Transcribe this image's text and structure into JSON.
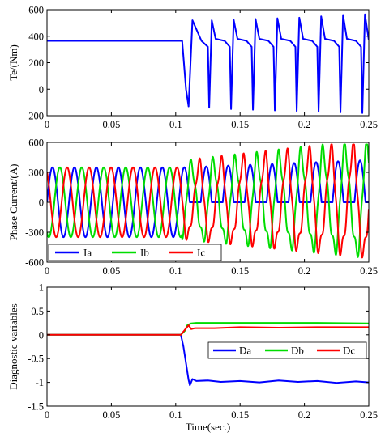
{
  "chart_data": [
    {
      "type": "line",
      "ylabel": "Te/(Nm)",
      "xlim": [
        0,
        0.25
      ],
      "ylim": [
        -200,
        600
      ],
      "xticks": [
        0,
        0.05,
        0.1,
        0.15,
        0.2,
        0.25
      ],
      "xtick_labels": [
        "0",
        "0.05",
        "0.1",
        "0.15",
        "0.2",
        "0.25"
      ],
      "yticks": [
        -200,
        0,
        200,
        400,
        600
      ],
      "ytick_labels": [
        "-200",
        "0",
        "200",
        "400",
        "600"
      ],
      "legend": "none",
      "grid": false,
      "series": [
        {
          "color": "#0000ff",
          "description": "steady 365 Nm until 0.105 s, then periodic pulsations between about -170 and 560 Nm",
          "x": [
            0,
            0.105,
            0.108,
            0.11,
            0.113,
            0.12,
            0.125,
            0.126,
            0.128,
            0.131,
            0.138,
            0.142,
            0.143,
            0.145,
            0.148,
            0.155,
            0.159,
            0.16,
            0.162,
            0.165,
            0.172,
            0.176,
            0.177,
            0.179,
            0.182,
            0.189,
            0.193,
            0.194,
            0.196,
            0.199,
            0.206,
            0.21,
            0.211,
            0.213,
            0.216,
            0.223,
            0.227,
            0.228,
            0.23,
            0.233,
            0.24,
            0.244,
            0.245,
            0.247,
            0.25
          ],
          "y": [
            365,
            365,
            0,
            -130,
            520,
            365,
            320,
            -140,
            520,
            380,
            365,
            320,
            -150,
            525,
            380,
            365,
            320,
            -155,
            530,
            380,
            365,
            320,
            -160,
            535,
            380,
            365,
            320,
            -165,
            540,
            380,
            365,
            320,
            -170,
            550,
            380,
            365,
            320,
            -175,
            560,
            380,
            365,
            320,
            -180,
            565,
            370
          ]
        }
      ]
    },
    {
      "type": "line",
      "ylabel": "Phase Current/(A)",
      "xlim": [
        0,
        0.25
      ],
      "ylim": [
        -600,
        600
      ],
      "xticks": [
        0,
        0.05,
        0.1,
        0.15,
        0.2,
        0.25
      ],
      "xtick_labels": [
        "0",
        "0.05",
        "0.1",
        "0.15",
        "0.2",
        "0.25"
      ],
      "yticks": [
        -600,
        -300,
        0,
        300,
        600
      ],
      "ytick_labels": [
        "-600",
        "-300",
        "0",
        "300",
        "600"
      ],
      "legend": "bottom, horizontal",
      "grid": false,
      "frequency_hz": 58.6,
      "fault_time": 0.105,
      "series": [
        {
          "name": "Ia",
          "color": "#0000ff",
          "amplitude_before": 350,
          "amplitude_after": 420
        },
        {
          "name": "Ib",
          "color": "#00dd00",
          "amplitude_before": 350,
          "amplitude_after": 520
        },
        {
          "name": "Ic",
          "color": "#ff0000",
          "amplitude_before": 350,
          "amplitude_after": 520
        }
      ]
    },
    {
      "type": "line",
      "ylabel": "Diagnostic variables",
      "xlabel": "Time(sec.)",
      "xlim": [
        0,
        0.25
      ],
      "ylim": [
        -1.5,
        1
      ],
      "xticks": [
        0,
        0.05,
        0.1,
        0.15,
        0.2,
        0.25
      ],
      "xtick_labels": [
        "0",
        "0.05",
        "0.1",
        "0.15",
        "0.2",
        "0.25"
      ],
      "yticks": [
        -1.5,
        -1,
        -0.5,
        0,
        0.5,
        1
      ],
      "ytick_labels": [
        "-1.5",
        "-1",
        "-0.5",
        "0",
        "0.5",
        "1"
      ],
      "legend": "top-right, horizontal",
      "grid": false,
      "series": [
        {
          "name": "Da",
          "color": "#0000ff",
          "x": [
            0,
            0.104,
            0.106,
            0.108,
            0.11,
            0.111,
            0.113,
            0.116,
            0.125,
            0.135,
            0.15,
            0.165,
            0.18,
            0.195,
            0.21,
            0.225,
            0.24,
            0.25
          ],
          "y": [
            0,
            0,
            -0.25,
            -0.6,
            -0.95,
            -1.06,
            -0.93,
            -0.97,
            -0.96,
            -0.99,
            -0.97,
            -1.0,
            -0.96,
            -0.99,
            -0.97,
            -1.01,
            -0.98,
            -1.0
          ]
        },
        {
          "name": "Db",
          "color": "#00dd00",
          "x": [
            0,
            0.104,
            0.107,
            0.109,
            0.112,
            0.116,
            0.13,
            0.15,
            0.18,
            0.21,
            0.25
          ],
          "y": [
            0,
            0,
            0.08,
            0.2,
            0.24,
            0.25,
            0.25,
            0.25,
            0.25,
            0.25,
            0.24
          ]
        },
        {
          "name": "Dc",
          "color": "#ff0000",
          "x": [
            0,
            0.104,
            0.107,
            0.11,
            0.112,
            0.115,
            0.13,
            0.15,
            0.18,
            0.21,
            0.25
          ],
          "y": [
            0,
            0,
            0.1,
            0.2,
            0.12,
            0.14,
            0.14,
            0.16,
            0.15,
            0.16,
            0.16
          ]
        }
      ]
    }
  ]
}
